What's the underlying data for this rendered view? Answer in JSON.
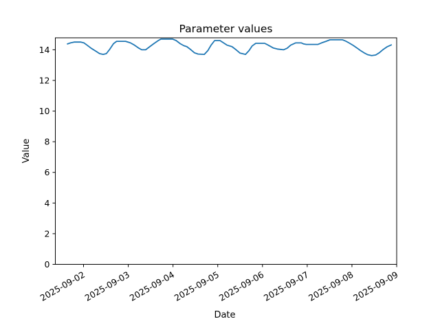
{
  "chart_data": {
    "type": "line",
    "title": "Parameter values",
    "xlabel": "Date",
    "ylabel": "Value",
    "x_unit": "days since 2025-09-01 00:00",
    "x_tick_days": [
      1,
      2,
      3,
      4,
      5,
      6,
      7,
      8
    ],
    "x_tick_labels": [
      "2025-09-02",
      "2025-09-03",
      "2025-09-04",
      "2025-09-05",
      "2025-09-06",
      "2025-09-07",
      "2025-09-08",
      "2025-09-09"
    ],
    "x_tick_rotation_deg": 30,
    "y_ticks": [
      0,
      2,
      4,
      6,
      8,
      10,
      12,
      14
    ],
    "xlim_days": [
      0.37,
      8.0
    ],
    "ylim": [
      0,
      14.78
    ],
    "grid": false,
    "legend": false,
    "line_color": "#1f77b4",
    "axis_color": "#000000",
    "background_color": "#ffffff",
    "series": [
      {
        "name": "Parameter values",
        "x_days": [
          0.64,
          0.71,
          0.79,
          0.94,
          1.01,
          1.08,
          1.17,
          1.28,
          1.36,
          1.44,
          1.51,
          1.59,
          1.67,
          1.74,
          1.94,
          2.05,
          2.14,
          2.24,
          2.3,
          2.39,
          2.48,
          2.57,
          2.67,
          2.73,
          2.99,
          3.07,
          3.16,
          3.24,
          3.31,
          3.4,
          3.48,
          3.56,
          3.7,
          3.78,
          3.85,
          3.93,
          4.05,
          4.13,
          4.21,
          4.32,
          4.41,
          4.5,
          4.62,
          4.7,
          4.77,
          4.85,
          5.05,
          5.13,
          5.24,
          5.33,
          5.47,
          5.55,
          5.63,
          5.74,
          5.87,
          5.92,
          5.98,
          6.24,
          6.32,
          6.42,
          6.51,
          6.79,
          6.87,
          6.95,
          7.03,
          7.11,
          7.19,
          7.27,
          7.35,
          7.44,
          7.53,
          7.61,
          7.69,
          7.79,
          7.88
        ],
        "values": [
          14.38,
          14.45,
          14.5,
          14.5,
          14.45,
          14.3,
          14.1,
          13.9,
          13.75,
          13.7,
          13.75,
          14.05,
          14.4,
          14.55,
          14.55,
          14.45,
          14.3,
          14.1,
          14.0,
          14.0,
          14.2,
          14.4,
          14.6,
          14.7,
          14.7,
          14.6,
          14.4,
          14.27,
          14.2,
          14.0,
          13.8,
          13.72,
          13.7,
          13.95,
          14.3,
          14.6,
          14.6,
          14.45,
          14.3,
          14.2,
          14.0,
          13.78,
          13.7,
          13.95,
          14.25,
          14.42,
          14.42,
          14.3,
          14.12,
          14.05,
          14.0,
          14.1,
          14.3,
          14.45,
          14.45,
          14.38,
          14.35,
          14.35,
          14.45,
          14.55,
          14.65,
          14.65,
          14.55,
          14.42,
          14.28,
          14.12,
          13.95,
          13.8,
          13.68,
          13.62,
          13.66,
          13.8,
          14.0,
          14.2,
          14.32
        ]
      }
    ]
  }
}
